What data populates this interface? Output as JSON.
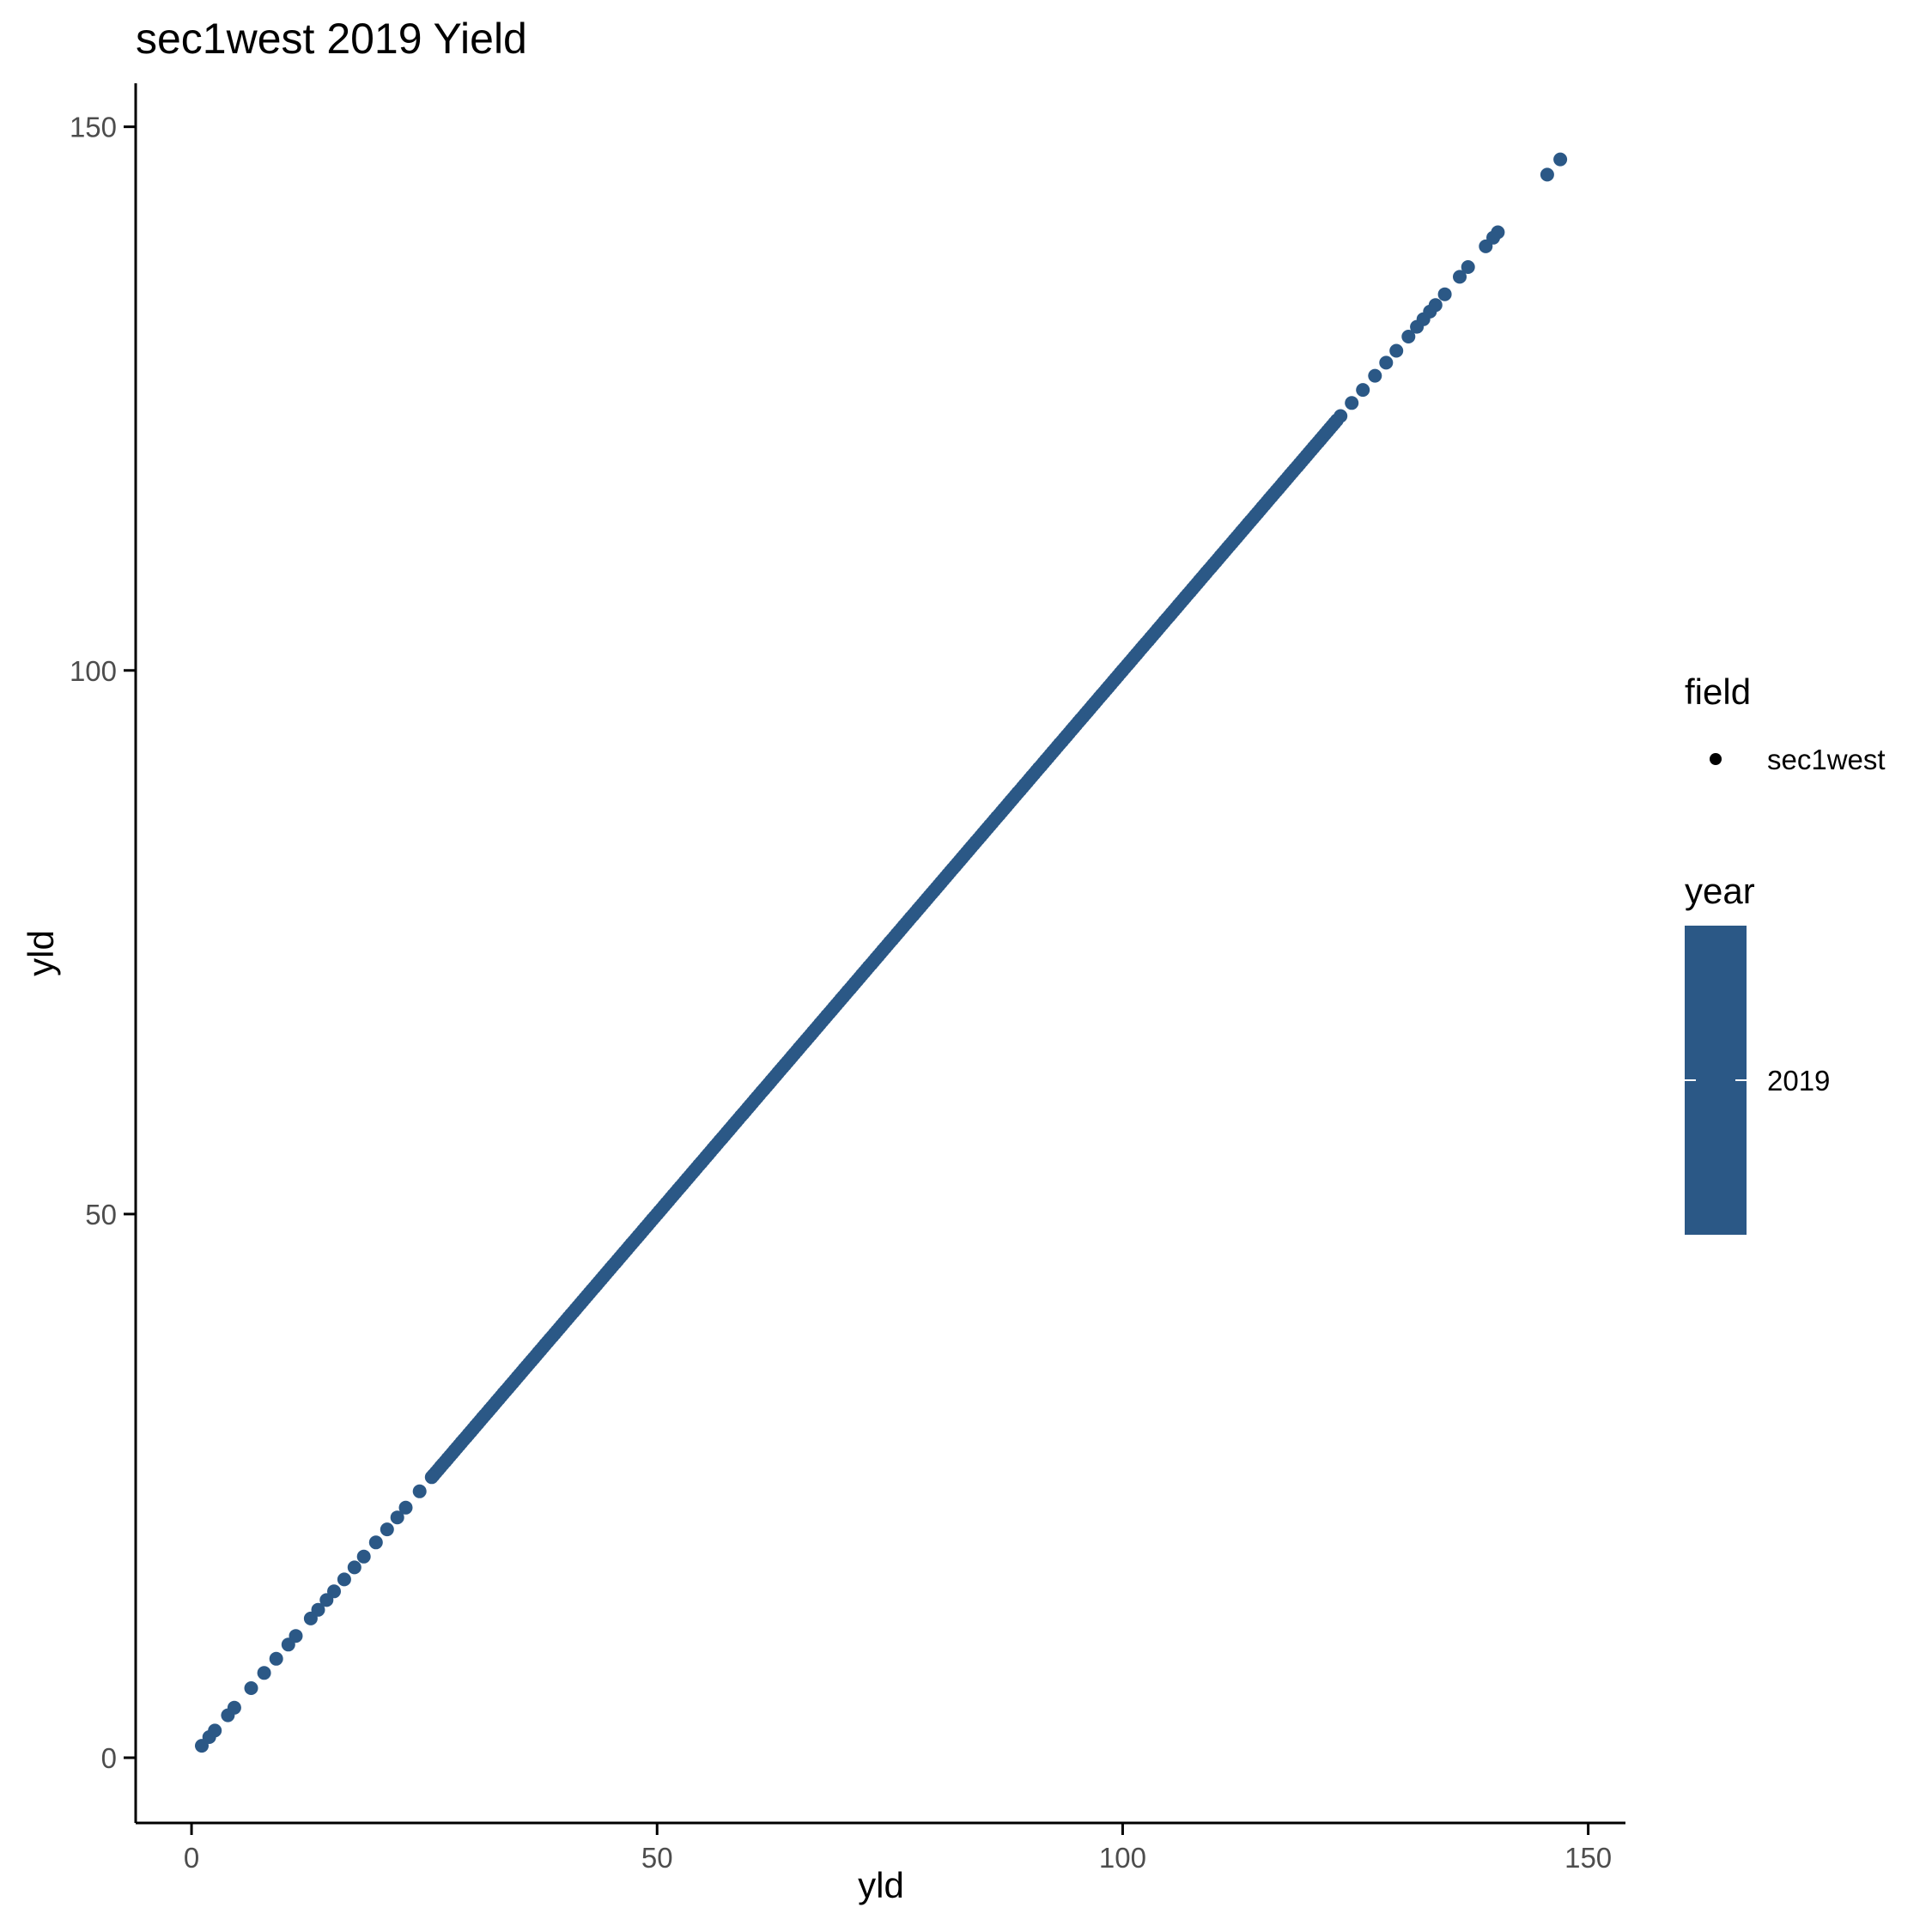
{
  "chart_data": {
    "type": "scatter",
    "title": "sec1west 2019 Yield",
    "xlabel": "yld",
    "ylabel": "yld",
    "xlim": [
      -6,
      154
    ],
    "ylim": [
      -6,
      154
    ],
    "x_ticks": [
      0,
      50,
      100,
      150
    ],
    "y_ticks": [
      0,
      50,
      100,
      150
    ],
    "grid": false,
    "legend_position": "right",
    "point_color": "#2b5886",
    "legend": {
      "field": {
        "title": "field",
        "entries": [
          "sec1west"
        ]
      },
      "year": {
        "title": "year",
        "entries": [
          "2019"
        ]
      }
    },
    "series": [
      {
        "name": "sec1west",
        "scatter_outliers": [
          [
            1.1,
            1.1
          ],
          [
            1.9,
            1.9
          ],
          [
            2.5,
            2.5
          ],
          [
            3.9,
            3.9
          ],
          [
            4.6,
            4.6
          ],
          [
            6.4,
            6.4
          ],
          [
            7.8,
            7.8
          ],
          [
            9.1,
            9.1
          ],
          [
            10.4,
            10.4
          ],
          [
            11.2,
            11.2
          ],
          [
            12.8,
            12.8
          ],
          [
            13.6,
            13.6
          ],
          [
            14.5,
            14.5
          ],
          [
            15.3,
            15.3
          ],
          [
            16.4,
            16.4
          ],
          [
            17.5,
            17.5
          ],
          [
            18.5,
            18.5
          ],
          [
            19.8,
            19.8
          ],
          [
            21.0,
            21.0
          ],
          [
            22.1,
            22.1
          ],
          [
            23.0,
            23.0
          ],
          [
            24.5,
            24.5
          ],
          [
            25.8,
            25.8
          ],
          [
            123.4,
            123.4
          ],
          [
            124.6,
            124.6
          ],
          [
            125.8,
            125.8
          ],
          [
            127.1,
            127.1
          ],
          [
            128.3,
            128.3
          ],
          [
            129.4,
            129.4
          ],
          [
            130.7,
            130.7
          ],
          [
            131.6,
            131.6
          ],
          [
            132.3,
            132.3
          ],
          [
            133.0,
            133.0
          ],
          [
            133.6,
            133.6
          ],
          [
            134.6,
            134.6
          ],
          [
            136.2,
            136.2
          ],
          [
            137.1,
            137.1
          ],
          [
            139.0,
            139.0
          ],
          [
            139.8,
            139.8
          ],
          [
            140.3,
            140.3
          ],
          [
            145.6,
            145.6
          ],
          [
            147.0,
            147.0
          ]
        ],
        "dense_range": [
          26,
          123
        ]
      }
    ]
  }
}
